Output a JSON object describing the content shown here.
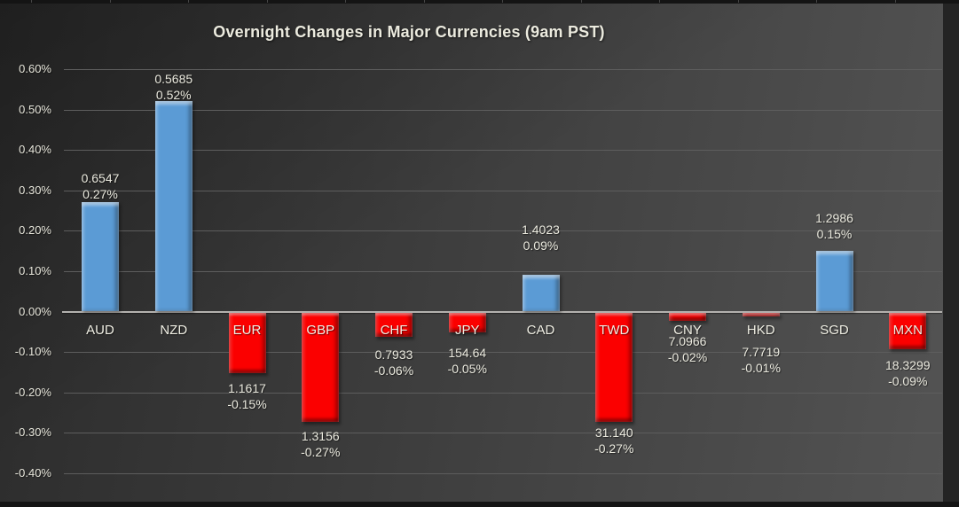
{
  "chart_data": {
    "type": "bar",
    "title": "Overnight Changes in Major Currencies (9am PST)",
    "categories": [
      "AUD",
      "NZD",
      "EUR",
      "GBP",
      "CHF",
      "JPY",
      "CAD",
      "TWD",
      "CNY",
      "HKD",
      "SGD",
      "MXN"
    ],
    "values": [
      0.27,
      0.52,
      -0.15,
      -0.27,
      -0.06,
      -0.05,
      0.09,
      -0.27,
      -0.02,
      -0.01,
      0.15,
      -0.09
    ],
    "value_labels": [
      "0.27%",
      "0.52%",
      "-0.15%",
      "-0.27%",
      "-0.06%",
      "-0.05%",
      "0.09%",
      "-0.27%",
      "-0.02%",
      "-0.01%",
      "0.15%",
      "-0.09%"
    ],
    "rate_labels": [
      "0.6547",
      "0.5685",
      "1.1617",
      "1.3156",
      "0.7933",
      "154.64",
      "1.4023",
      "31.140",
      "7.0966",
      "7.7719",
      "1.2986",
      "18.3299"
    ],
    "y_tick_labels": [
      "0.60%",
      "0.50%",
      "0.40%",
      "0.30%",
      "0.20%",
      "0.10%",
      "0.00%",
      "-0.10%",
      "-0.20%",
      "-0.30%",
      "-0.40%"
    ],
    "ylim": [
      -0.4,
      0.6
    ],
    "xlabel": "",
    "ylabel": "",
    "grid": true,
    "legend": "none",
    "positive_color": "#5B9BD5",
    "negative_color": "#FB0000"
  }
}
